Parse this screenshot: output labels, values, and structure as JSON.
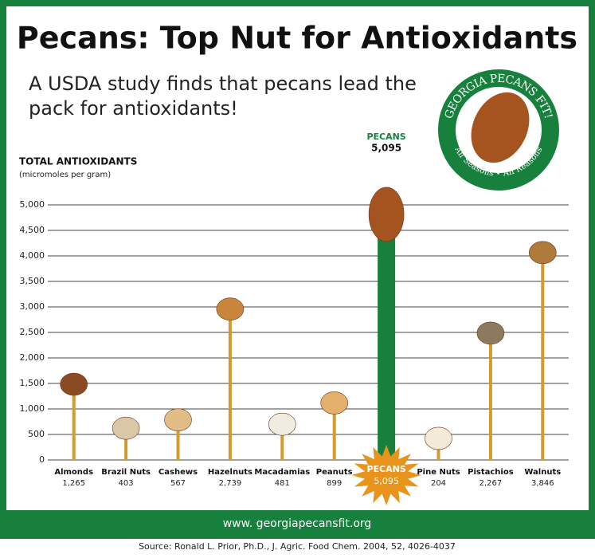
{
  "chart_data": {
    "type": "bar",
    "title": "Pecans: Top Nut for Antioxidants",
    "subtitle": "A USDA study finds that pecans lead the pack for antioxidants!",
    "y_label": "TOTAL ANTIOXIDANTS",
    "y_label_units": "(micromoles per gram)",
    "categories": [
      "Almonds",
      "Brazil Nuts",
      "Cashews",
      "Hazelnuts",
      "Macadamias",
      "Peanuts",
      "PECANS",
      "Pine Nuts",
      "Pistachios",
      "Walnuts"
    ],
    "values": [
      1265,
      403,
      567,
      2739,
      481,
      899,
      5095,
      204,
      2267,
      3846
    ],
    "value_labels": [
      "1,265",
      "403",
      "567",
      "2,739",
      "481",
      "899",
      "5,095",
      "204",
      "2,267",
      "3,846"
    ],
    "color": "#d39a2c",
    "highlight_color": "#17803d",
    "ylim": [
      0,
      5000
    ],
    "yticks": [
      0,
      500,
      {
        "value": 1000,
        "label": "1,000"
      },
      {
        "value": 1500,
        "label": "1,500"
      },
      {
        "value": 2000,
        "label": "2,000"
      },
      {
        "value": 2500,
        "label": "2,500"
      },
      {
        "value": 3000,
        "label": "3,000"
      },
      {
        "value": 3500,
        "label": "3,500"
      },
      {
        "value": 4000,
        "label": "4,000"
      },
      {
        "value": 4500,
        "label": "4,500"
      },
      {
        "value": 5000,
        "label": "5,000"
      }
    ],
    "grid": true,
    "logo_top": "GEORGIA PECANS FIT!",
    "logo_bottom": "All Seasons • All Reasons",
    "website": "www. georgiapecansfit.org",
    "source": "Source: Ronald L. Prior, Ph.D., J. Agric. Food Chem. 2004, 52, 4026-4037"
  }
}
